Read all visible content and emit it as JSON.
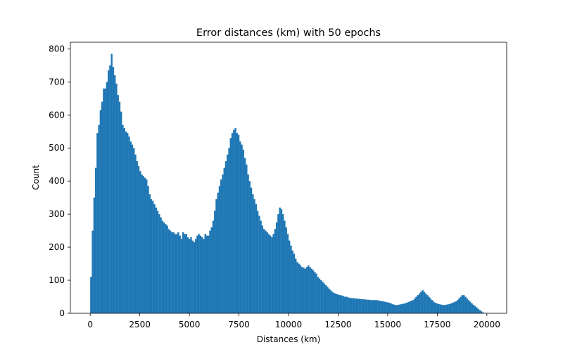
{
  "chart_data": {
    "type": "bar",
    "title": "Error distances (km) with 50 epochs",
    "xlabel": "Distances (km)",
    "ylabel": "Count",
    "xlim": [
      -1000,
      21000
    ],
    "ylim": [
      0,
      820
    ],
    "xticks": [
      0,
      2500,
      5000,
      7500,
      10000,
      12500,
      15000,
      17500,
      20000
    ],
    "xtick_labels": [
      "0",
      "2500",
      "5000",
      "7500",
      "10000",
      "12500",
      "15000",
      "17500",
      "20000"
    ],
    "yticks": [
      0,
      100,
      200,
      300,
      400,
      500,
      600,
      700,
      800
    ],
    "ytick_labels": [
      "0",
      "100",
      "200",
      "300",
      "400",
      "500",
      "600",
      "700",
      "800"
    ],
    "grid": false,
    "legend": "none",
    "bar_color": "#1f77b4",
    "bin_start": 0,
    "bin_width": 80,
    "counts": [
      110,
      250,
      350,
      440,
      545,
      570,
      615,
      640,
      680,
      680,
      700,
      735,
      750,
      785,
      745,
      720,
      695,
      660,
      640,
      610,
      570,
      560,
      550,
      545,
      535,
      520,
      510,
      500,
      480,
      460,
      445,
      430,
      420,
      415,
      410,
      405,
      385,
      360,
      345,
      340,
      330,
      320,
      310,
      300,
      290,
      280,
      275,
      270,
      265,
      255,
      250,
      245,
      245,
      240,
      240,
      245,
      235,
      225,
      245,
      240,
      240,
      230,
      225,
      230,
      220,
      215,
      225,
      235,
      240,
      235,
      230,
      225,
      240,
      235,
      235,
      250,
      260,
      280,
      310,
      345,
      365,
      385,
      405,
      420,
      440,
      460,
      480,
      500,
      530,
      545,
      555,
      560,
      545,
      540,
      520,
      510,
      495,
      470,
      450,
      420,
      400,
      380,
      360,
      345,
      330,
      310,
      295,
      280,
      265,
      255,
      250,
      245,
      240,
      235,
      230,
      240,
      255,
      275,
      300,
      320,
      315,
      300,
      280,
      260,
      240,
      220,
      205,
      190,
      180,
      165,
      155,
      150,
      145,
      140,
      138,
      135,
      140,
      145,
      140,
      135,
      130,
      125,
      120,
      110,
      105,
      100,
      95,
      90,
      85,
      80,
      75,
      70,
      65,
      62,
      60,
      58,
      56,
      55,
      54,
      52,
      50,
      50,
      48,
      47,
      46,
      46,
      45,
      45,
      44,
      44,
      43,
      43,
      42,
      42,
      41,
      41,
      40,
      40,
      40,
      40,
      40,
      39,
      38,
      37,
      36,
      35,
      34,
      33,
      32,
      30,
      28,
      26,
      25,
      25,
      26,
      27,
      28,
      29,
      30,
      32,
      34,
      36,
      38,
      40,
      45,
      50,
      55,
      60,
      65,
      70,
      65,
      60,
      55,
      50,
      45,
      40,
      35,
      32,
      30,
      28,
      27,
      26,
      25,
      25,
      26,
      27,
      28,
      30,
      32,
      34,
      36,
      40,
      45,
      50,
      55,
      55,
      50,
      45,
      40,
      35,
      30,
      26,
      22,
      18,
      14,
      10,
      6,
      3,
      1,
      0
    ]
  }
}
